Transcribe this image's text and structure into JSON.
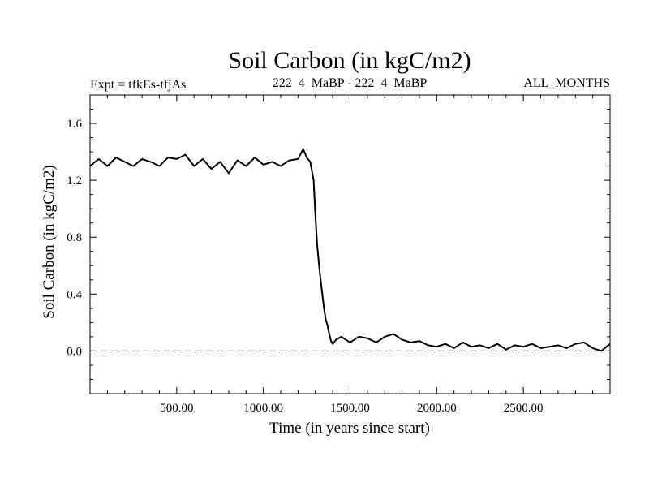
{
  "chart_data": {
    "type": "line",
    "title": "Soil Carbon (in kgC/m2)",
    "subtitle_left": "Expt = tfkEs-tfjAs",
    "subtitle_center": "222_4_MaBP - 222_4_MaBP",
    "subtitle_right": "ALL_MONTHS",
    "xlabel": "Time (in years since start)",
    "ylabel": "Soil Carbon (in kgC/m2)",
    "xlim": [
      0,
      3000
    ],
    "ylim": [
      -0.3,
      1.8
    ],
    "x_ticks": [
      500,
      1000,
      1500,
      2000,
      2500
    ],
    "x_tick_labels": [
      "500.00",
      "1000.00",
      "1500.00",
      "2000.00",
      "2500.00"
    ],
    "y_ticks": [
      0.0,
      0.4,
      0.8,
      1.2,
      1.6
    ],
    "y_tick_labels": [
      "0.0",
      "0.4",
      "0.8",
      "1.2",
      "1.6"
    ],
    "zero_line": {
      "y": 0.0,
      "style": "dashed"
    },
    "grid": false,
    "series": [
      {
        "color": "#000000",
        "x": [
          0,
          50,
          100,
          150,
          200,
          250,
          300,
          350,
          400,
          450,
          500,
          550,
          600,
          650,
          700,
          750,
          800,
          850,
          900,
          950,
          1000,
          1050,
          1100,
          1150,
          1200,
          1230,
          1250,
          1270,
          1290,
          1300,
          1310,
          1320,
          1330,
          1340,
          1350,
          1360,
          1370,
          1380,
          1390,
          1400,
          1420,
          1450,
          1500,
          1550,
          1600,
          1650,
          1700,
          1750,
          1800,
          1850,
          1900,
          1950,
          2000,
          2050,
          2100,
          2150,
          2200,
          2250,
          2300,
          2350,
          2400,
          2450,
          2500,
          2550,
          2600,
          2650,
          2700,
          2750,
          2800,
          2850,
          2900,
          2950,
          3000
        ],
        "values": [
          1.3,
          1.35,
          1.3,
          1.36,
          1.33,
          1.3,
          1.35,
          1.33,
          1.3,
          1.36,
          1.35,
          1.38,
          1.3,
          1.35,
          1.28,
          1.33,
          1.25,
          1.34,
          1.3,
          1.36,
          1.31,
          1.33,
          1.3,
          1.34,
          1.35,
          1.42,
          1.36,
          1.33,
          1.2,
          0.95,
          0.75,
          0.62,
          0.5,
          0.4,
          0.3,
          0.22,
          0.18,
          0.12,
          0.07,
          0.05,
          0.08,
          0.1,
          0.06,
          0.1,
          0.09,
          0.06,
          0.1,
          0.12,
          0.08,
          0.06,
          0.07,
          0.04,
          0.03,
          0.05,
          0.02,
          0.06,
          0.03,
          0.04,
          0.02,
          0.05,
          0.01,
          0.04,
          0.03,
          0.05,
          0.02,
          0.03,
          0.04,
          0.02,
          0.05,
          0.06,
          0.02,
          0.0,
          0.05
        ]
      }
    ]
  }
}
